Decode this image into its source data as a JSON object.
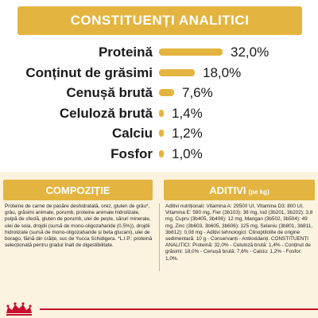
{
  "header": {
    "title": "CONSTITUENȚI ANALITICI"
  },
  "chart_data": {
    "type": "bar",
    "categories": [
      "Proteină",
      "Conținut de grăsimi",
      "Cenușă brută",
      "Celuloză brută",
      "Calciu",
      "Fosfor"
    ],
    "values": [
      32.0,
      18.0,
      7.6,
      1.4,
      1.2,
      1.0
    ],
    "value_labels": [
      "32,0%",
      "18,0%",
      "7,6%",
      "1,4%",
      "1,2%",
      "1,0%"
    ],
    "bar_color": "#e3b43f"
  },
  "composition": {
    "title": "COMPOZIȚIE",
    "text": "Proteine de carne de pasăre deshidratată, orez, gluten de grâu*, grâu, grăsimi animale, porumb, proteine animale hidrolizate, pulpă de sfeclă, gluten de porumb, ulei de pește, săruri minerale, ulei de soia, drojdii (sursă de mono-oligozaharide (0,5%)), drojdii hidrolizate (sursă de mono-oligozaharide și beta glucani), ulei de borago, făină din crăițe, suc de Yucca Schidigera. *L.I.P.: proteină selecționată pentru gradul înalt de digestibilitate."
  },
  "additives": {
    "title": "ADITIVI",
    "unit": "(pe kg)",
    "text": "Aditivi nutriționali: Vitamina A: 29500 UI, Vitamina D3: 800 UI, Vitamina E: 590 mg, Fier (3b103): 38 mg, Iod (3b201, 3b202): 3,8 mg, Cupru (3b405, 3b406): 12 mg, Mangan (3b502, 3b504): 49 mg, Zinc (3b603, 3b605, 3b606): 125 mg, Seleniu (3b801, 3b811, 3b812): 0,08 mg - Aditivi tehnologici: Clinoptilolite de origine sedimentară: 10 g - Conservanți - Antioxidanți. CONSTITUENȚI ANALITICI: Proteină: 32,0% - Celuloză brută: 1,4% - Conținut de grăsimi: 18,0% - Cenușă brută: 7,6% - Calciu: 1,2% - Fosfor: 1,0%."
  },
  "colors": {
    "accent": "#e3b43f",
    "panel": "#fbf3e0",
    "brand_red": "#c8102e"
  },
  "brand": {
    "icon": "royal-canin-crown-logo"
  }
}
